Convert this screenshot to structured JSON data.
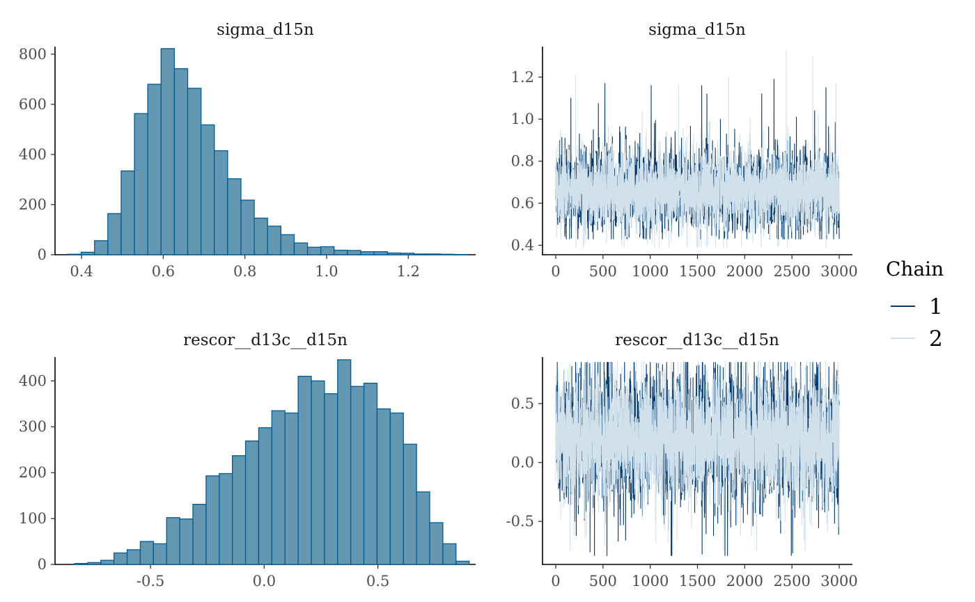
{
  "chart_data": [
    {
      "type": "bar",
      "title": "sigma_d15n",
      "bin_start": 0.3665,
      "bin_width": 0.0326,
      "values": [
        2,
        10,
        56,
        164,
        334,
        563,
        680,
        822,
        742,
        664,
        518,
        415,
        303,
        218,
        146,
        114,
        80,
        47,
        30,
        32,
        18,
        17,
        12,
        12,
        7,
        6,
        3,
        3,
        2,
        1
      ],
      "xlim": [
        0.335,
        1.365
      ],
      "ylim": [
        0,
        830
      ],
      "xticks": [
        0.4,
        0.6,
        0.8,
        1.0,
        1.2
      ],
      "xtick_labels": [
        "0.4",
        "0.6",
        "0.8",
        "1.0",
        "1.2"
      ],
      "yticks": [
        0,
        200,
        400,
        600,
        800
      ],
      "ytick_labels": [
        "0",
        "200",
        "400",
        "600",
        "800"
      ],
      "fill_color": "#6497b1",
      "edge_color": "#005b96"
    },
    {
      "type": "line",
      "title": "sigma_d15n",
      "iterations": [
        0,
        3000
      ],
      "xlim": [
        -140,
        3140
      ],
      "ylim": [
        0.355,
        1.345
      ],
      "xticks": [
        0,
        500,
        1000,
        1500,
        2000,
        2500,
        3000
      ],
      "xtick_labels": [
        "0",
        "500",
        "1000",
        "1500",
        "2000",
        "2500",
        "3000"
      ],
      "yticks": [
        0.4,
        0.6,
        0.8,
        1.0,
        1.2
      ],
      "ytick_labels": [
        "0.4",
        "0.6",
        "0.8",
        "1.0",
        "1.2"
      ],
      "series": [
        {
          "name": "1",
          "color": "#03396c",
          "center": 0.66,
          "sd": 0.09,
          "min": 0.43,
          "max": 1.19,
          "spikes": [
            [
              520,
              1.17
            ],
            [
              1010,
              1.16
            ],
            [
              1545,
              1.16
            ],
            [
              1600,
              1.12
            ],
            [
              2310,
              1.19
            ],
            [
              2860,
              1.15
            ],
            [
              2180,
              1.12
            ],
            [
              160,
              1.1
            ],
            [
              2740,
              1.04
            ],
            [
              2390,
              0.44
            ],
            [
              3000,
              0.43
            ]
          ]
        },
        {
          "name": "2",
          "color": "#d0e1ec",
          "center": 0.66,
          "sd": 0.09,
          "min": 0.39,
          "max": 1.33,
          "spikes": [
            [
              210,
              1.21
            ],
            [
              2440,
              1.33
            ],
            [
              2720,
              1.3
            ],
            [
              2965,
              1.17
            ],
            [
              1830,
              1.2
            ],
            [
              1300,
              1.16
            ],
            [
              700,
              0.4
            ],
            [
              970,
              0.41
            ]
          ]
        }
      ]
    },
    {
      "type": "bar",
      "title": "rescor__d13c__d15n",
      "bin_start": -0.8343,
      "bin_width": 0.05786,
      "values": [
        2,
        4,
        9,
        25,
        32,
        50,
        45,
        102,
        99,
        131,
        193,
        198,
        237,
        269,
        298,
        335,
        330,
        410,
        400,
        372,
        446,
        388,
        395,
        339,
        330,
        262,
        158,
        91,
        45,
        7
      ],
      "xlim": [
        -0.92,
        0.93
      ],
      "ylim": [
        0,
        452
      ],
      "xticks": [
        -0.5,
        0.0,
        0.5
      ],
      "xtick_labels": [
        "-0.5",
        "0.0",
        "0.5"
      ],
      "yticks": [
        0,
        100,
        200,
        300,
        400
      ],
      "ytick_labels": [
        "0",
        "100",
        "200",
        "300",
        "400"
      ],
      "fill_color": "#6497b1",
      "edge_color": "#005b96"
    },
    {
      "type": "line",
      "title": "rescor__d13c__d15n",
      "iterations": [
        0,
        3000
      ],
      "xlim": [
        -140,
        3140
      ],
      "ylim": [
        -0.865,
        0.895
      ],
      "xticks": [
        0,
        500,
        1000,
        1500,
        2000,
        2500,
        3000
      ],
      "xtick_labels": [
        "0",
        "500",
        "1000",
        "1500",
        "2000",
        "2500",
        "3000"
      ],
      "yticks": [
        -0.5,
        0.0,
        0.5
      ],
      "ytick_labels": [
        "-0.5",
        "0.0",
        "0.5"
      ],
      "series": [
        {
          "name": "1",
          "color": "#03396c",
          "center": 0.2,
          "sd": 0.26,
          "min": -0.79,
          "max": 0.85,
          "spikes": [
            [
              410,
              -0.79
            ],
            [
              1670,
              -0.62
            ],
            [
              2380,
              -0.6
            ],
            [
              740,
              -0.66
            ],
            [
              1085,
              0.84
            ],
            [
              360,
              0.84
            ],
            [
              2200,
              0.81
            ],
            [
              1580,
              0.83
            ]
          ]
        },
        {
          "name": "2",
          "color": "#d0e1ec",
          "center": 0.2,
          "sd": 0.26,
          "min": -0.75,
          "max": 0.86,
          "spikes": [
            [
              2640,
              -0.75
            ],
            [
              1060,
              -0.68
            ],
            [
              310,
              -0.64
            ],
            [
              2730,
              0.86
            ],
            [
              150,
              0.84
            ],
            [
              2990,
              0.85
            ],
            [
              1500,
              0.83
            ]
          ]
        }
      ]
    }
  ],
  "legend": {
    "title": "Chain",
    "items": [
      {
        "label": "1",
        "color": "#03396c"
      },
      {
        "label": "2",
        "color": "#d0e1ec"
      }
    ]
  }
}
